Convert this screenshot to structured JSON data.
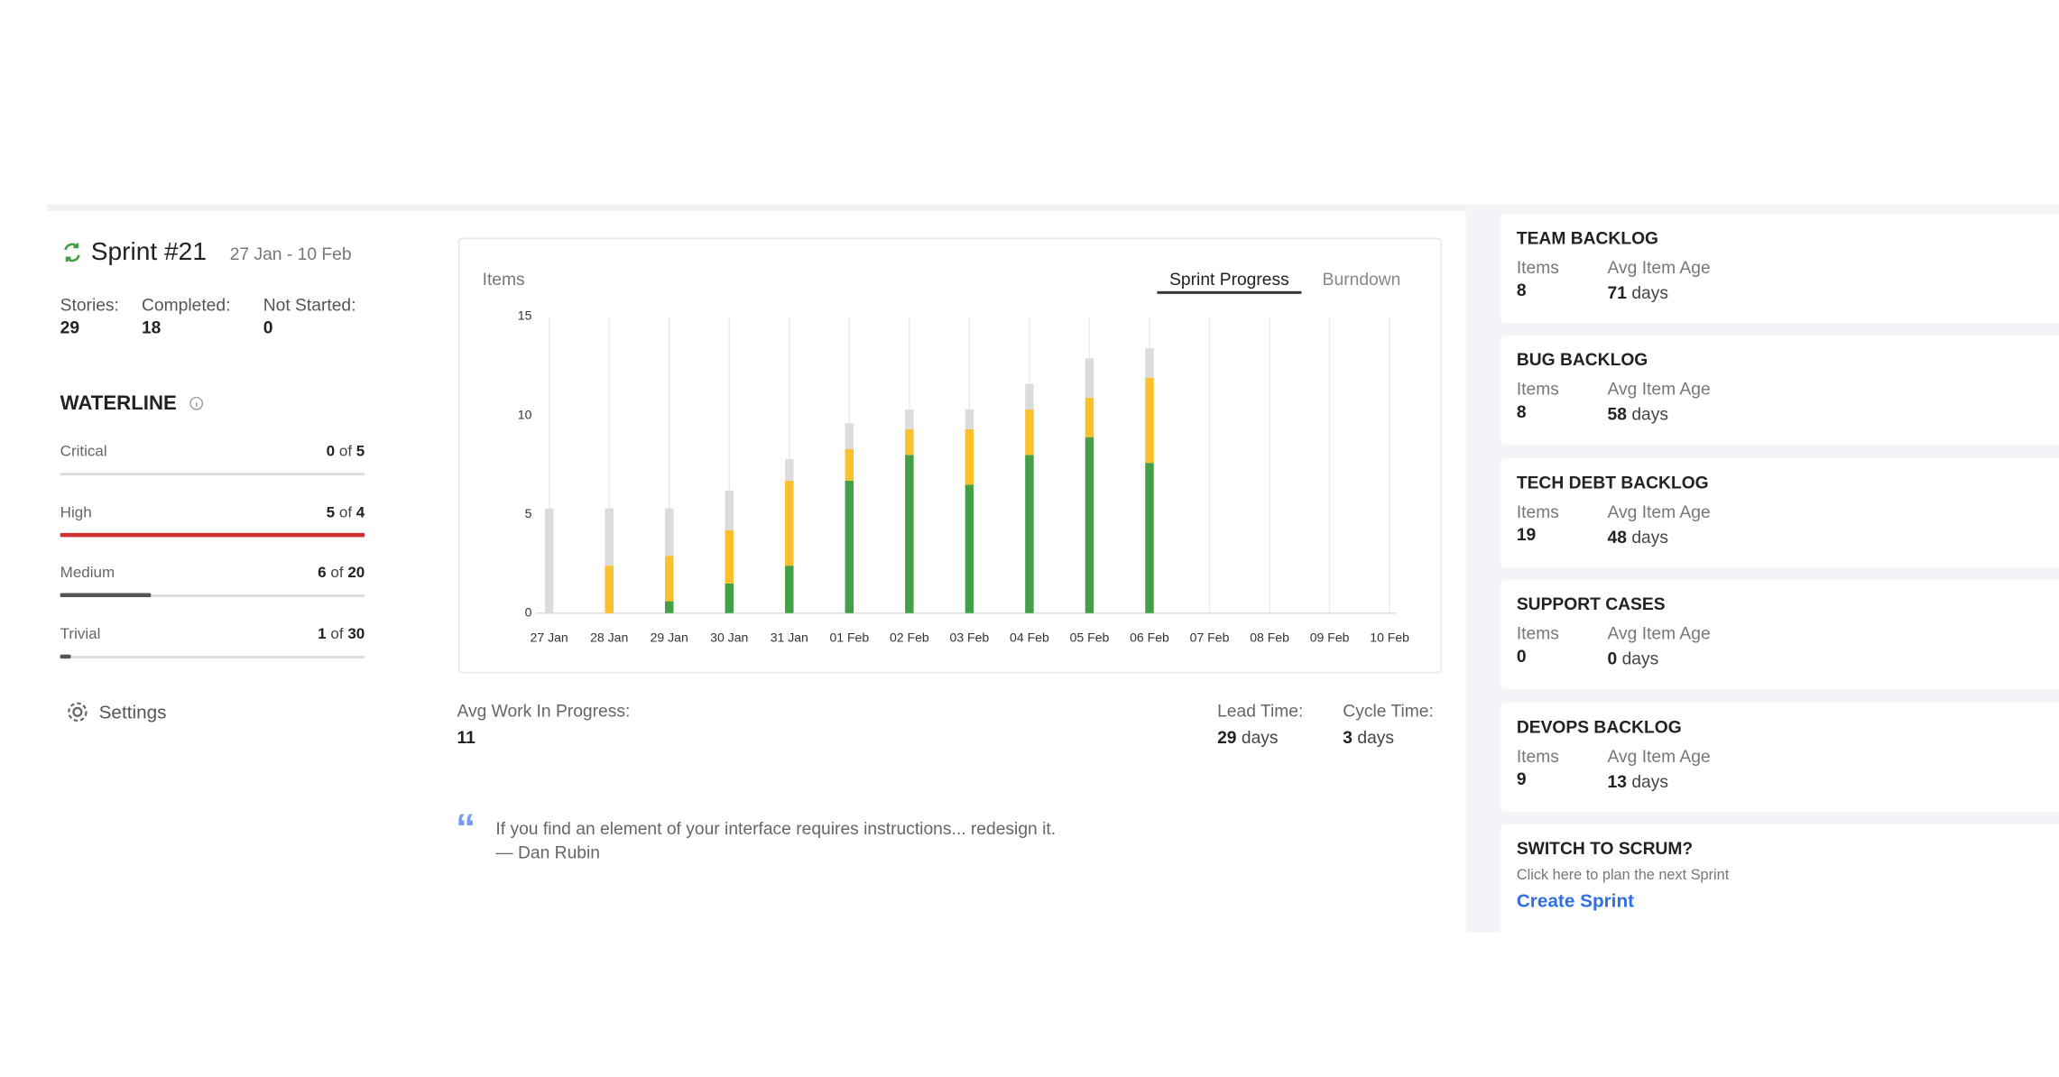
{
  "sprint": {
    "title": "Sprint #21",
    "dates": "27 Jan - 10 Feb",
    "stats": [
      {
        "label": "Stories:",
        "value": 29
      },
      {
        "label": "Completed:",
        "value": 18
      },
      {
        "label": "Not Started:",
        "value": 0
      }
    ]
  },
  "waterline": {
    "title": "WATERLINE",
    "separator": "of",
    "rows": [
      {
        "label": "Critical",
        "value": 0,
        "total": 5,
        "color": "#555555"
      },
      {
        "label": "High",
        "value": 5,
        "total": 4,
        "color": "#d32f2f"
      },
      {
        "label": "Medium",
        "value": 6,
        "total": 20,
        "color": "#555555"
      },
      {
        "label": "Trivial",
        "value": 1,
        "total": 30,
        "color": "#555555"
      }
    ]
  },
  "settings": "Settings",
  "chart_panel": {
    "tabs": [
      "Sprint Progress",
      "Burndown"
    ]
  },
  "chart_data": {
    "type": "bar",
    "stacked": true,
    "y_label": "Items",
    "categories": [
      "27 Jan",
      "28 Jan",
      "29 Jan",
      "30 Jan",
      "31 Jan",
      "01 Feb",
      "02 Feb",
      "03 Feb",
      "04 Feb",
      "05 Feb",
      "06 Feb",
      "07 Feb",
      "08 Feb",
      "09 Feb",
      "10 Feb"
    ],
    "series": [
      {
        "color": "#43a047",
        "values": [
          0,
          0,
          0.6,
          1.5,
          2.4,
          6.7,
          8.0,
          6.5,
          8.0,
          8.9,
          7.6,
          null,
          null,
          null,
          null
        ]
      },
      {
        "color": "#fbc02d",
        "values": [
          0,
          2.4,
          2.3,
          2.7,
          4.3,
          1.6,
          1.3,
          2.8,
          2.3,
          2.0,
          4.3,
          null,
          null,
          null,
          null
        ]
      },
      {
        "color": "#dcdcdc",
        "values": [
          5.3,
          2.9,
          2.4,
          2.0,
          1.1,
          1.3,
          1.0,
          1.0,
          1.3,
          2.0,
          1.5,
          null,
          null,
          null,
          null
        ]
      }
    ],
    "ylim": [
      0,
      15
    ],
    "yticks": [
      0,
      5,
      10,
      15
    ],
    "grid": true
  },
  "metrics": {
    "unit": "days",
    "avg_wip": {
      "label": "Avg Work In Progress:",
      "value": 11
    },
    "lead_time": {
      "label": "Lead Time:",
      "value": 29
    },
    "cycle_time": {
      "label": "Cycle Time:",
      "value": 3
    }
  },
  "quote": {
    "text": "If you find an element of your interface requires instructions... redesign it.",
    "author": "— Dan Rubin"
  },
  "backlogs": {
    "items_label": "Items",
    "age_label": "Avg Item Age",
    "unit": "days",
    "cards": [
      {
        "title": "TEAM BACKLOG",
        "items": 8,
        "avg_age": 71
      },
      {
        "title": "BUG BACKLOG",
        "items": 8,
        "avg_age": 58
      },
      {
        "title": "TECH DEBT BACKLOG",
        "items": 19,
        "avg_age": 48
      },
      {
        "title": "SUPPORT CASES",
        "items": 0,
        "avg_age": 0
      },
      {
        "title": "DEVOPS BACKLOG",
        "items": 9,
        "avg_age": 13
      }
    ]
  },
  "scrum": {
    "title": "SWITCH TO SCRUM?",
    "text": "Click here to plan the next Sprint",
    "link": "Create Sprint"
  }
}
